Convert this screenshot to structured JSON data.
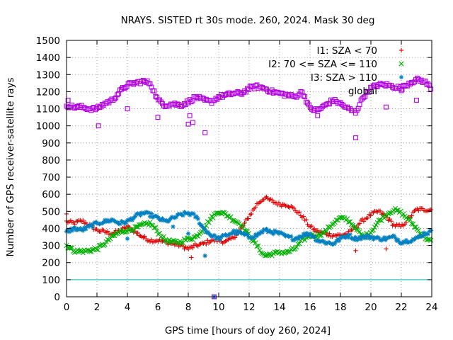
{
  "chart_data": {
    "type": "scatter",
    "title": "NRAYS. SISTED rt 30s mode. 260, 2024. Mask 30 deg",
    "xlabel": "GPS time [hours of doy 260, 2024]",
    "ylabel": "Number of GPS receiver-satellite rays",
    "xlim": [
      0,
      24
    ],
    "ylim": [
      0,
      1500
    ],
    "xticks": [
      0,
      2,
      4,
      6,
      8,
      10,
      12,
      14,
      16,
      18,
      20,
      22,
      24
    ],
    "yticks": [
      0,
      100,
      200,
      300,
      400,
      500,
      600,
      700,
      800,
      900,
      1000,
      1100,
      1200,
      1300,
      1400,
      1500
    ],
    "grid": true,
    "legend_position": "top-right",
    "reference_line": {
      "y": 100,
      "color": "#00c0c0"
    },
    "series": [
      {
        "name": "I1: SZA < 70",
        "marker": "+",
        "color": "#e00000",
        "x": [
          0,
          0.5,
          1,
          1.5,
          2,
          2.5,
          3,
          3.5,
          4,
          4.5,
          5,
          5.5,
          6,
          6.5,
          7,
          7.5,
          8,
          8.5,
          9,
          9.5,
          10,
          10.5,
          11,
          11.5,
          12,
          12.5,
          13,
          13.5,
          14,
          14.5,
          15,
          15.5,
          16,
          16.5,
          17,
          17.5,
          18,
          18.5,
          19,
          19.5,
          20,
          20.5,
          21,
          21.5,
          22,
          22.5,
          23,
          23.5,
          24
        ],
        "y": [
          440,
          430,
          445,
          420,
          390,
          380,
          370,
          385,
          410,
          380,
          350,
          330,
          330,
          320,
          310,
          300,
          280,
          300,
          310,
          330,
          330,
          320,
          350,
          400,
          470,
          540,
          580,
          560,
          540,
          540,
          510,
          470,
          410,
          380,
          370,
          360,
          360,
          370,
          410,
          450,
          480,
          500,
          470,
          420,
          410,
          460,
          510,
          510,
          510
        ]
      },
      {
        "name": "I2: 70 <= SZA <= 110",
        "marker": "×",
        "color": "#00b000",
        "x": [
          0,
          0.5,
          1,
          1.5,
          2,
          2.5,
          3,
          3.5,
          4,
          4.5,
          5,
          5.5,
          6,
          6.5,
          7,
          7.5,
          8,
          8.5,
          9,
          9.5,
          10,
          10.5,
          11,
          11.5,
          12,
          12.5,
          13,
          13.5,
          14,
          14.5,
          15,
          15.5,
          16,
          16.5,
          17,
          17.5,
          18,
          18.5,
          19,
          19.5,
          20,
          20.5,
          21,
          21.5,
          22,
          22.5,
          23,
          23.5,
          24
        ],
        "y": [
          300,
          270,
          265,
          270,
          280,
          310,
          350,
          380,
          390,
          400,
          420,
          430,
          380,
          330,
          320,
          320,
          340,
          350,
          400,
          460,
          500,
          480,
          450,
          420,
          360,
          300,
          240,
          250,
          260,
          260,
          280,
          330,
          360,
          360,
          380,
          430,
          460,
          450,
          400,
          350,
          380,
          440,
          480,
          510,
          490,
          450,
          400,
          350,
          320
        ]
      },
      {
        "name": "I3: SZA > 110",
        "marker": "*",
        "color": "#0080c0",
        "x": [
          0,
          0.5,
          1,
          1.5,
          2,
          2.5,
          3,
          3.5,
          4,
          4.5,
          5,
          5.5,
          6,
          6.5,
          7,
          7.5,
          8,
          8.5,
          9,
          9.5,
          10,
          10.5,
          11,
          11.5,
          12,
          12.5,
          13,
          13.5,
          14,
          14.5,
          15,
          15.5,
          16,
          16.5,
          17,
          17.5,
          18,
          18.5,
          19,
          19.5,
          20,
          20.5,
          21,
          21.5,
          22,
          22.5,
          23,
          23.5,
          24
        ],
        "y": [
          380,
          400,
          390,
          410,
          430,
          440,
          450,
          430,
          440,
          470,
          490,
          480,
          460,
          440,
          460,
          480,
          490,
          470,
          400,
          360,
          340,
          360,
          380,
          370,
          350,
          360,
          390,
          380,
          370,
          350,
          340,
          360,
          370,
          330,
          320,
          310,
          340,
          360,
          340,
          350,
          350,
          340,
          340,
          350,
          320,
          330,
          340,
          370,
          380
        ]
      },
      {
        "name": "global",
        "marker": "□",
        "color": "#b000e0",
        "x": [
          0,
          0.5,
          1,
          1.5,
          2,
          2.5,
          3,
          3.5,
          4,
          4.5,
          5,
          5.5,
          6,
          6.5,
          7,
          7.5,
          8,
          8.5,
          9,
          9.5,
          10,
          10.5,
          11,
          11.5,
          12,
          12.5,
          13,
          13.5,
          14,
          14.5,
          15,
          15.5,
          16,
          16.5,
          17,
          17.5,
          18,
          18.5,
          19,
          19.5,
          20,
          20.5,
          21,
          21.5,
          22,
          22.5,
          23,
          23.5,
          24
        ],
        "y": [
          1120,
          1110,
          1110,
          1100,
          1100,
          1130,
          1150,
          1200,
          1240,
          1250,
          1260,
          1250,
          1150,
          1120,
          1130,
          1120,
          1140,
          1170,
          1150,
          1140,
          1170,
          1180,
          1190,
          1190,
          1220,
          1230,
          1220,
          1200,
          1190,
          1180,
          1170,
          1200,
          1100,
          1090,
          1120,
          1150,
          1130,
          1100,
          1080,
          1170,
          1220,
          1240,
          1240,
          1230,
          1220,
          1250,
          1270,
          1260,
          1220
        ]
      }
    ],
    "outliers": [
      {
        "series": "global",
        "x": [
          0.1,
          2.1,
          4.0,
          6.0,
          8.0,
          8.1,
          8.3,
          9.1,
          9.7,
          16.5,
          19.0,
          21.0,
          23.0
        ],
        "y": [
          1150,
          1000,
          1100,
          1050,
          1010,
          1060,
          1020,
          960,
          0,
          1060,
          930,
          1110,
          1150
        ]
      },
      {
        "series": "I1: SZA < 70",
        "x": [
          0.0,
          8.2,
          9.1,
          19.0,
          21.0
        ],
        "y": [
          485,
          230,
          240,
          270,
          280
        ]
      },
      {
        "series": "I3: SZA > 110",
        "x": [
          4.0,
          7.0,
          8.0,
          9.1,
          9.7
        ],
        "y": [
          340,
          410,
          370,
          240,
          0
        ]
      }
    ]
  }
}
